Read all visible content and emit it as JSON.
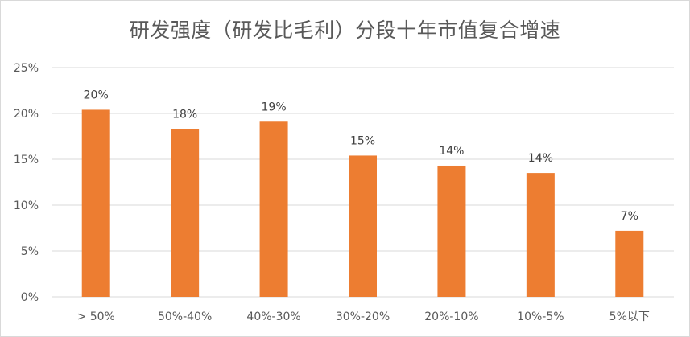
{
  "chart_data": {
    "type": "bar",
    "title": "研发强度（研发比毛利）分段十年市值复合增速",
    "categories": [
      "> 50%",
      "50%-40%",
      "40%-30%",
      "30%-20%",
      "20%-10%",
      "10%-5%",
      "5%以下"
    ],
    "values": [
      20.4,
      18.3,
      19.1,
      15.4,
      14.3,
      13.5,
      7.2
    ],
    "data_labels": [
      "20%",
      "18%",
      "19%",
      "15%",
      "14%",
      "14%",
      "7%"
    ],
    "y_ticks": [
      0,
      5,
      10,
      15,
      20,
      25
    ],
    "y_tick_labels": [
      "0%",
      "5%",
      "10%",
      "15%",
      "20%",
      "25%"
    ],
    "ylim": [
      0,
      25
    ],
    "xlabel": "",
    "ylabel": "",
    "grid": true,
    "legend": "none",
    "bar_color": "#ED7D31",
    "grid_color": "#D9D9D9"
  }
}
